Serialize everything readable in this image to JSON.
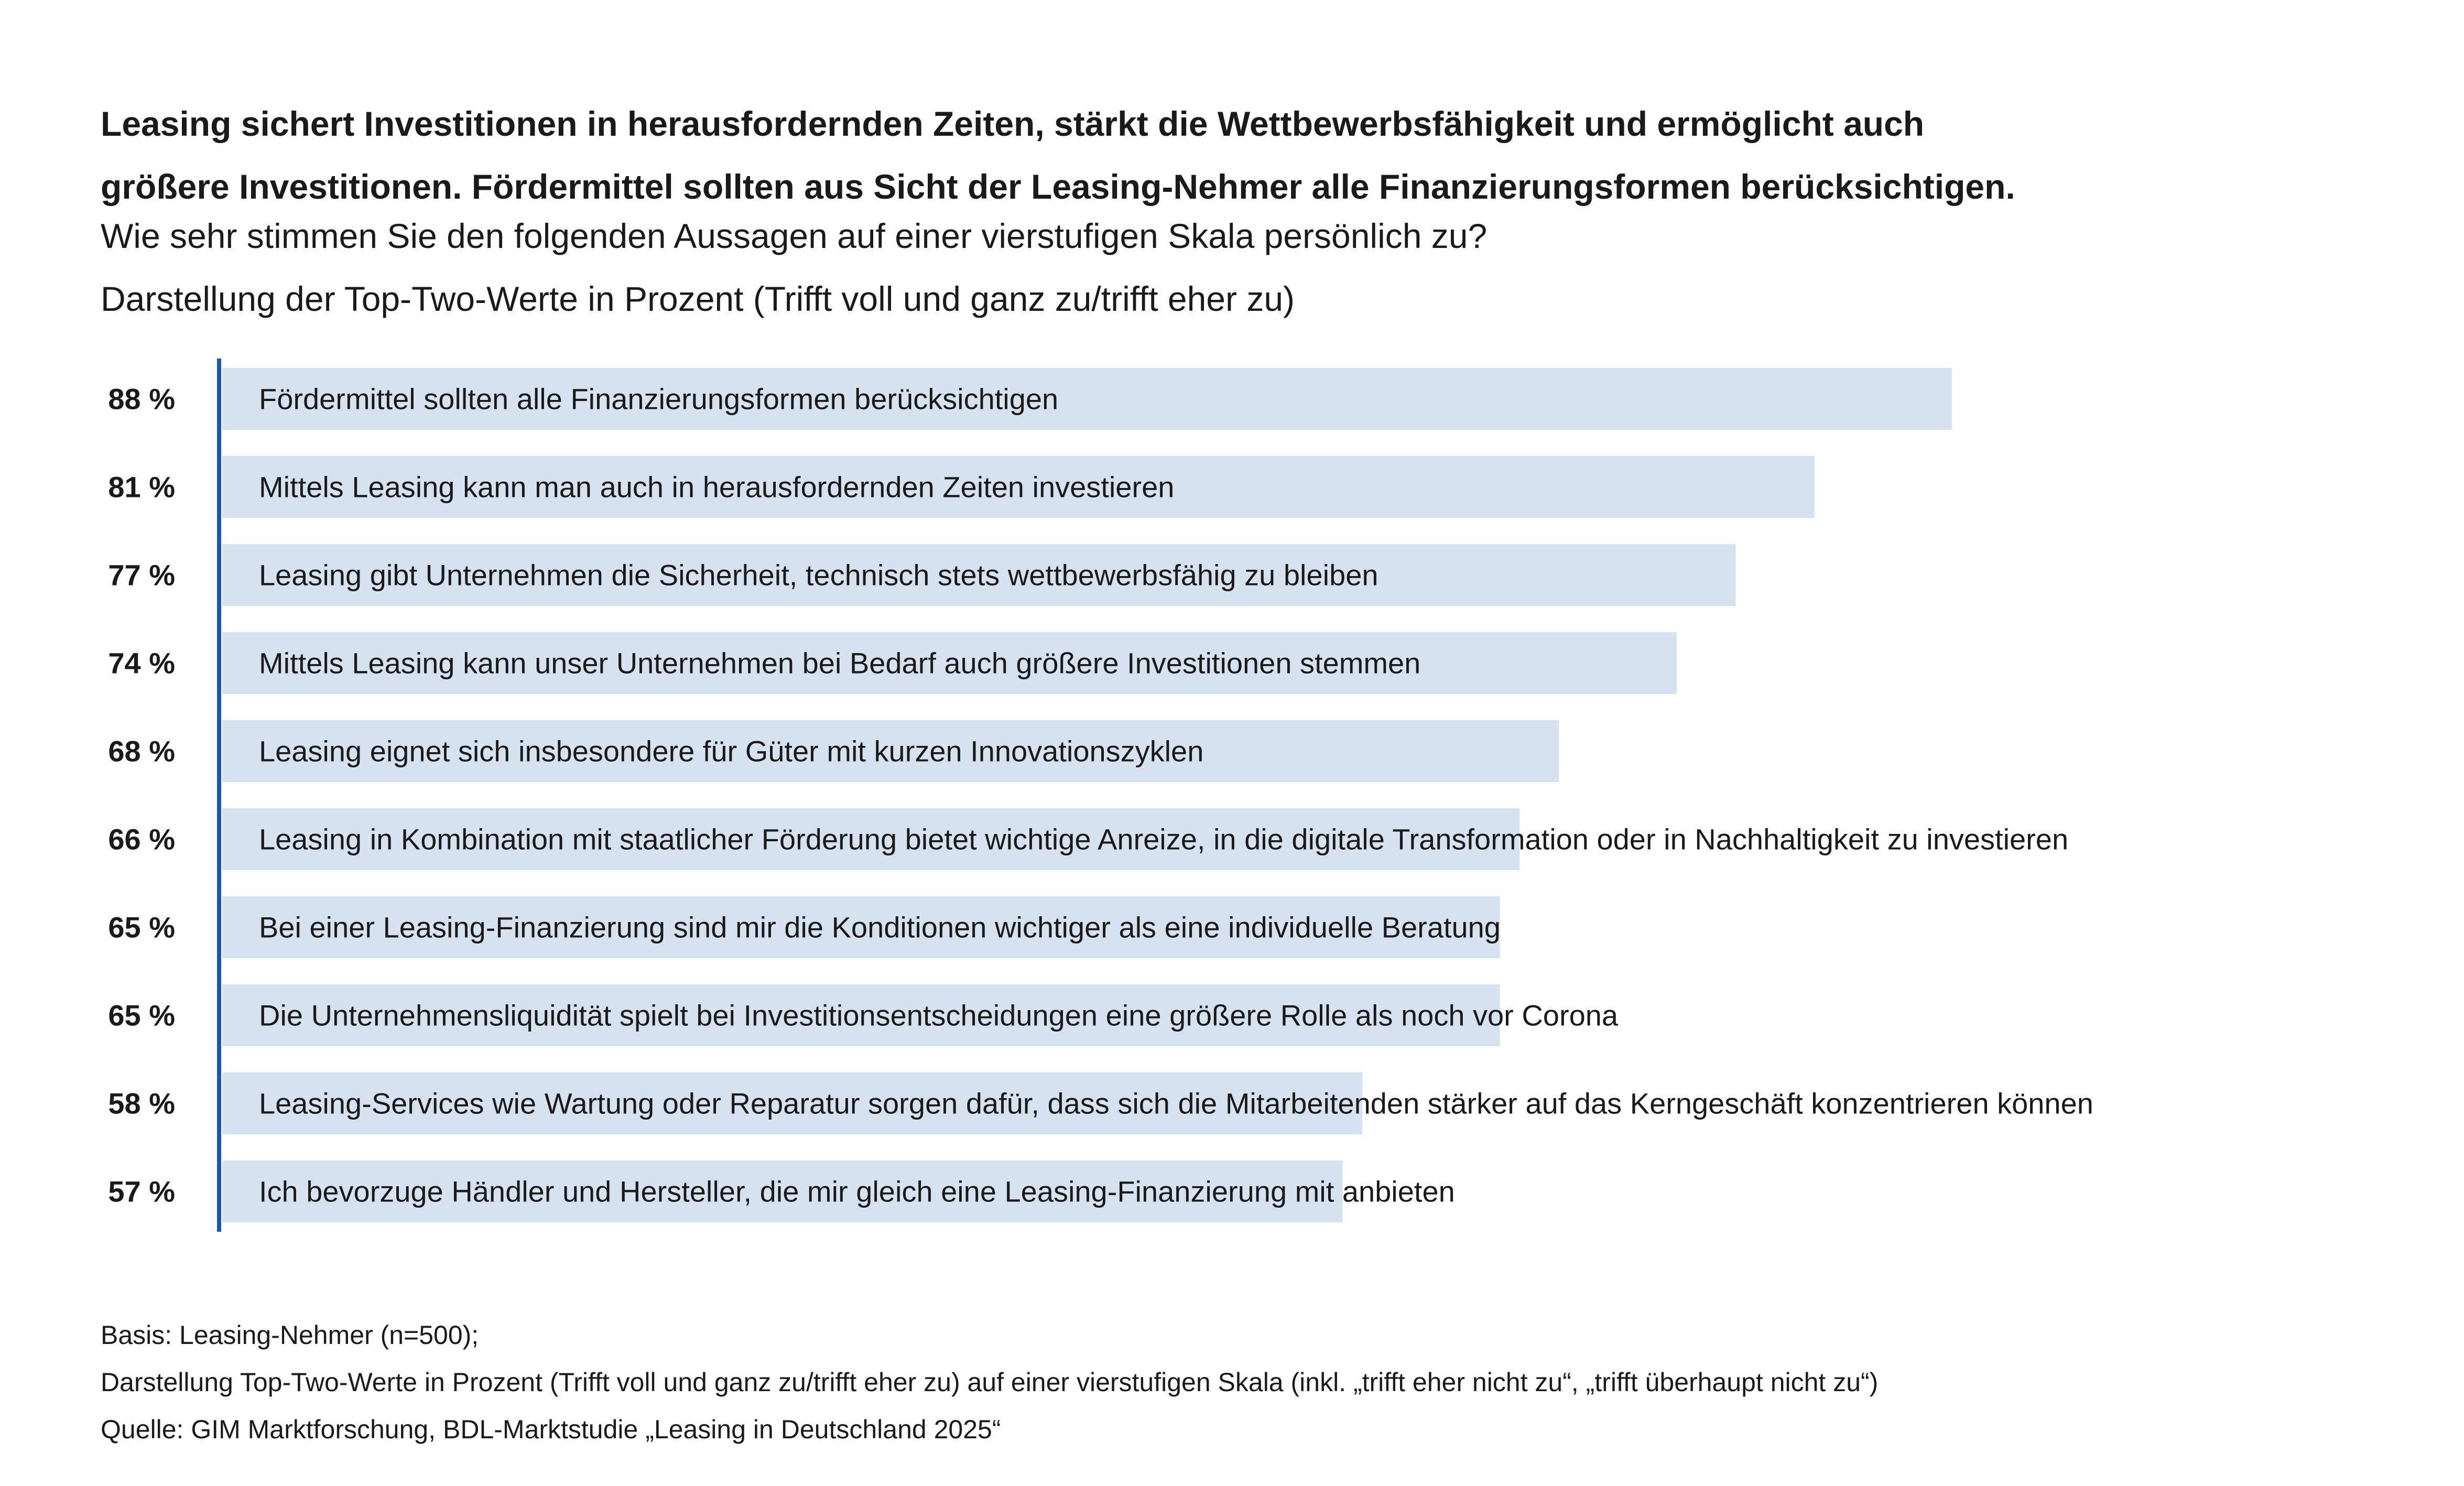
{
  "title_line1": "Leasing sichert Investitionen in herausfordernden Zeiten, stärkt die Wettbewerbsfähigkeit und ermöglicht auch",
  "title_line2": "größere Investitionen. Fördermittel sollten aus Sicht der Leasing-Nehmer alle Finanzierungsformen berücksichtigen.",
  "subtitle_line1": "Wie sehr stimmen Sie den folgenden Aussagen auf einer vierstufigen Skala persönlich zu?",
  "subtitle_line2": "Darstellung der Top-Two-Werte in Prozent (Trifft voll und ganz zu/trifft eher zu)",
  "footnotes": {
    "line1": "Basis: Leasing-Nehmer (n=500);",
    "line2": "Darstellung Top-Two-Werte in Prozent (Trifft voll und ganz zu/trifft eher zu) auf einer vierstufigen Skala (inkl. „trifft eher nicht zu“, „trifft überhaupt nicht zu“)",
    "line3": "Quelle: GIM Marktforschung, BDL-Marktstudie „Leasing in Deutschland 2025“"
  },
  "chart_data": {
    "type": "bar",
    "orientation": "horizontal",
    "unit": "%",
    "xlim": [
      0,
      100
    ],
    "grid": false,
    "bar_color": "#d6e2f0",
    "axis_color": "#1f56a6",
    "categories": [
      "Fördermittel sollten alle Finanzierungsformen berücksichtigen",
      "Mittels Leasing kann man auch in herausfordernden Zeiten investieren",
      "Leasing gibt Unternehmen die Sicherheit, technisch stets wettbewerbsfähig zu bleiben",
      "Mittels Leasing kann unser Unternehmen bei Bedarf auch größere Investitionen stemmen",
      "Leasing eignet sich insbesondere für Güter mit kurzen Innovationszyklen",
      "Leasing in Kombination mit staatlicher Förderung bietet wichtige Anreize, in die digitale Transformation oder in Nachhaltigkeit zu investieren",
      "Bei einer Leasing-Finanzierung sind mir die Konditionen wichtiger als eine individuelle Beratung",
      "Die Unternehmensliquidität spielt bei Investitionsentscheidungen eine größere Rolle als noch vor Corona",
      "Leasing-Services wie Wartung oder Reparatur sorgen dafür, dass sich die Mitarbeitenden stärker auf das Kerngeschäft konzentrieren können",
      "Ich bevorzuge Händler und Hersteller, die mir gleich eine Leasing-Finanzierung mit anbieten"
    ],
    "values": [
      88,
      81,
      77,
      74,
      68,
      66,
      65,
      65,
      58,
      57
    ]
  }
}
